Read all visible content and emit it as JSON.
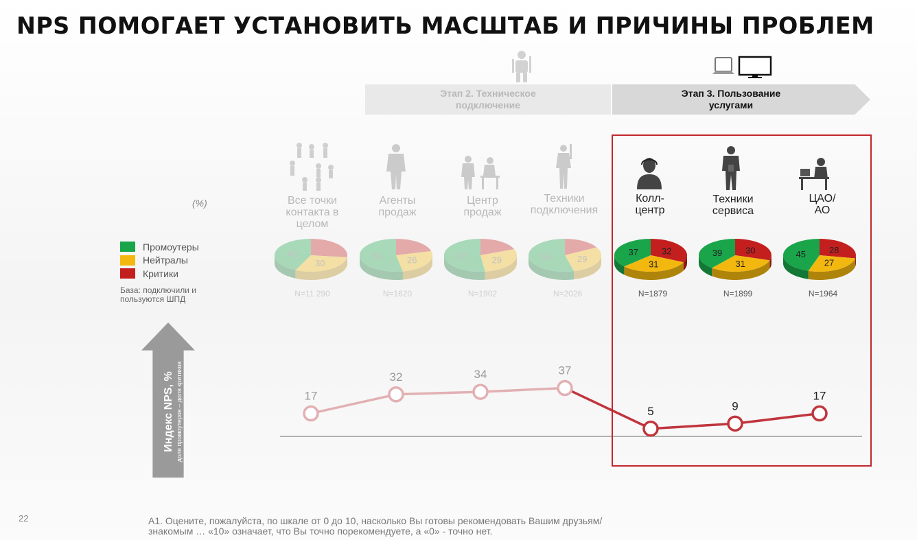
{
  "title": "NPS ПОМОГАЕТ УСТАНОВИТЬ МАСШТАБ И ПРИЧИНЫ ПРОБЛЕМ",
  "stages": {
    "stage2": "Этап 2. Техническое\nподключение",
    "stage3": "Этап 3. Пользование\nуслугами"
  },
  "percent_note": "(%)",
  "legend": {
    "promoters": "Промоутеры",
    "neutrals": "Нейтралы",
    "critics": "Критики"
  },
  "base_note": "База: подключили и пользуются ШПД",
  "axis_label": "Индекс NPS, %",
  "axis_sublabel": "доля промоутеров – доля критиков",
  "page_number": "22",
  "footer": "А1. Оцените, пожалуйста, по шкале от 0 до 10, насколько Вы готовы рекомендовать Вашим друзьям/знакомым …  «10» означает, что Вы точно порекомендуете, а «0» - точно нет.",
  "colors": {
    "promoters": "#1aa54a",
    "neutrals": "#f3b80f",
    "critics": "#c41f1f",
    "line_faded": "#e2b0b3",
    "line_active": "#c0353d",
    "highlight_box": "#c3262d"
  },
  "chart_data": {
    "type": "line",
    "categories": [
      "Все точки контакта в целом",
      "Агенты продаж",
      "Центр продаж",
      "Техники подключения",
      "Колл-центр",
      "Техники сервиса",
      "ЦАО/АО"
    ],
    "category_labels": [
      "Все точки\nконтакта в\nцелом",
      "Агенты\nпродаж",
      "Центр\nпродаж",
      "Техники\nподключения",
      "Колл-\nцентр",
      "Техники\nсервиса",
      "ЦАО/\nАО"
    ],
    "series": [
      {
        "name": "Индекс NPS, %",
        "values": [
          17,
          32,
          34,
          37,
          5,
          9,
          17
        ]
      }
    ],
    "highlighted": [
      false,
      false,
      false,
      false,
      true,
      true,
      true
    ],
    "sample_sizes": [
      "N=11 290",
      "N=1620",
      "N=1902",
      "N=2026",
      "N=1879",
      "N=1899",
      "N=1964"
    ],
    "pies": [
      {
        "promoters": 43,
        "neutrals": 30,
        "critics": 27
      },
      {
        "promoters": 53,
        "neutrals": 26,
        "critics": 21
      },
      {
        "promoters": 52,
        "neutrals": 29,
        "critics": 19
      },
      {
        "promoters": 54,
        "neutrals": 29,
        "critics": 17
      },
      {
        "promoters": 37,
        "neutrals": 31,
        "critics": 32
      },
      {
        "promoters": 39,
        "neutrals": 31,
        "critics": 30
      },
      {
        "promoters": 45,
        "neutrals": 27,
        "critics": 28
      }
    ],
    "pie_shown_labels": [
      {
        "promoters": "43",
        "neutrals": "30",
        "critics": ""
      },
      {
        "promoters": "53",
        "neutrals": "26",
        "critics": ""
      },
      {
        "promoters": "52",
        "neutrals": "29",
        "critics": ""
      },
      {
        "promoters": "54",
        "neutrals": "29",
        "critics": ""
      },
      {
        "promoters": "37",
        "neutrals": "31",
        "critics": "32"
      },
      {
        "promoters": "39",
        "neutrals": "31",
        "critics": "30"
      },
      {
        "promoters": "45",
        "neutrals": "27",
        "critics": "28"
      }
    ],
    "legend_position": "left",
    "grid": false
  }
}
